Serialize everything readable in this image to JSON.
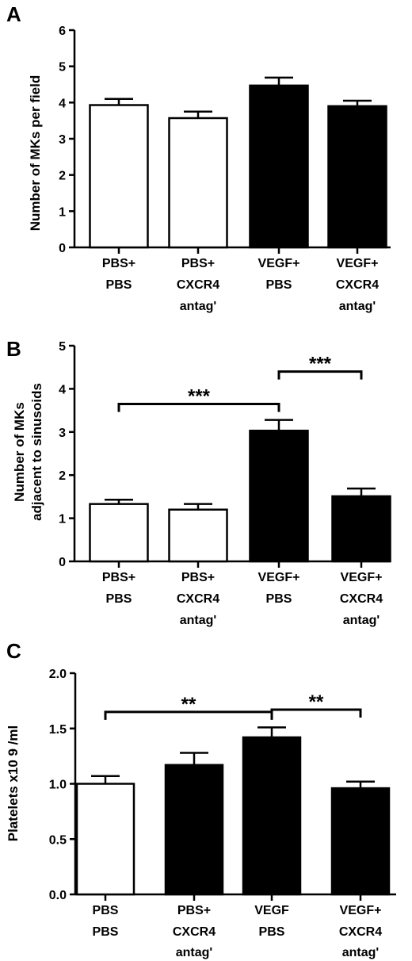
{
  "chart_data": [
    {
      "panel": "A",
      "type": "bar",
      "ylabel": "Number of MKs per field",
      "ylim": [
        0,
        6
      ],
      "yticks": [
        "0",
        "1",
        "2",
        "3",
        "4",
        "5",
        "6"
      ],
      "categories": [
        [
          "PBS+",
          "PBS"
        ],
        [
          "PBS+",
          "CXCR4",
          "antag'"
        ],
        [
          "VEGF+",
          "PBS"
        ],
        [
          "VEGF+",
          "CXCR4",
          "antag'"
        ]
      ],
      "values": [
        3.93,
        3.57,
        4.47,
        3.9
      ],
      "errors": [
        0.17,
        0.18,
        0.22,
        0.15
      ],
      "fills": [
        "#ffffff",
        "#ffffff",
        "#000000",
        "#000000"
      ],
      "significance": []
    },
    {
      "panel": "B",
      "type": "bar",
      "ylabel": [
        "Number of MKs",
        "adjacent to sinusoids"
      ],
      "ylim": [
        0,
        5
      ],
      "yticks": [
        "0",
        "1",
        "2",
        "3",
        "4",
        "5"
      ],
      "categories": [
        [
          "PBS+",
          "PBS"
        ],
        [
          "PBS+",
          "CXCR4",
          "antag'"
        ],
        [
          "VEGF+",
          "PBS"
        ],
        [
          "VEGF+",
          "CXCR4",
          "antag'"
        ]
      ],
      "values": [
        1.33,
        1.2,
        3.03,
        1.51
      ],
      "errors": [
        0.1,
        0.13,
        0.25,
        0.18
      ],
      "fills": [
        "#ffffff",
        "#ffffff",
        "#000000",
        "#000000"
      ],
      "significance": [
        {
          "from": 0,
          "to": 2,
          "label": "***",
          "y": 3.65
        },
        {
          "from": 2,
          "to": 3,
          "label": "***",
          "y": 4.4
        }
      ]
    },
    {
      "panel": "C",
      "type": "bar",
      "ylabel": "Platelets x10 9 /ml",
      "ylim": [
        0,
        2.0
      ],
      "yticks": [
        "0.0",
        "0.5",
        "1.0",
        "1.5",
        "2.0"
      ],
      "categories": [
        [
          "PBS",
          "PBS"
        ],
        [
          "PBS+",
          "CXCR4",
          "antag'"
        ],
        [
          "VEGF",
          "PBS"
        ],
        [
          "VEGF+",
          "CXCR4",
          "antag'"
        ]
      ],
      "values": [
        1.0,
        1.17,
        1.42,
        0.96
      ],
      "errors": [
        0.07,
        0.11,
        0.09,
        0.06
      ],
      "fills": [
        "#ffffff",
        "#000000",
        "#000000",
        "#000000"
      ],
      "significance": [
        {
          "from": 0,
          "to": 2,
          "label": "**",
          "y": 1.65
        },
        {
          "from": 2,
          "to": 3,
          "label": "**",
          "y": 1.67
        }
      ]
    }
  ]
}
